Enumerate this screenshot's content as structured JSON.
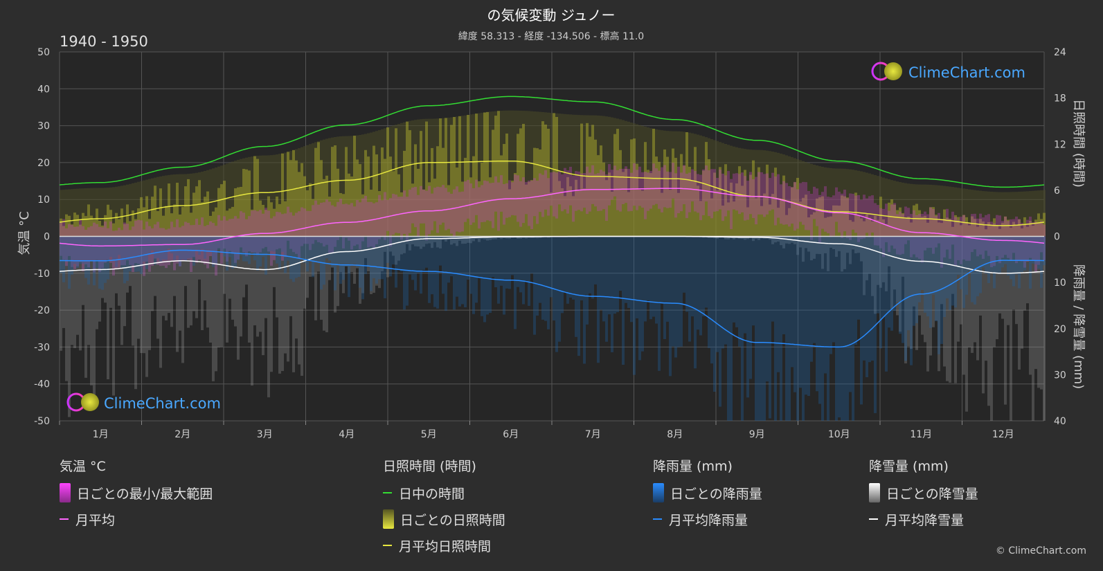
{
  "header": {
    "title": "の気候変動 ジュノー",
    "subtitle": "緯度 58.313 - 経度 -134.506 - 標高 11.0",
    "period": "1940 - 1950"
  },
  "branding": {
    "logo_text": "ClimeChart.com",
    "copyright": "© ClimeChart.com"
  },
  "colors": {
    "daylight": "#33dd33",
    "sunshine": "#e8e840",
    "temp_mean": "#ff66ff",
    "temp_range": "#d040d0",
    "rain": "#2a8cff",
    "snow": "#ffffff",
    "logo": "#4aa8ff"
  },
  "chart_data": {
    "type": "line",
    "months": [
      "1月",
      "2月",
      "3月",
      "4月",
      "5月",
      "6月",
      "7月",
      "8月",
      "9月",
      "10月",
      "11月",
      "12月"
    ],
    "axes": {
      "left": {
        "label": "気温 °C",
        "range": [
          -50,
          50
        ],
        "ticks": [
          50,
          40,
          30,
          20,
          10,
          0,
          -10,
          -20,
          -30,
          -40,
          -50
        ]
      },
      "right_top": {
        "label": "日照時間 (時間)",
        "range": [
          0,
          24
        ],
        "ticks": [
          24,
          18,
          12,
          6,
          0
        ]
      },
      "right_bottom": {
        "label": "降雨量 / 降雪量 (mm)",
        "range": [
          0,
          40
        ],
        "ticks": [
          10,
          20,
          30,
          40
        ]
      }
    },
    "grid": true,
    "series": [
      {
        "name": "日中の時間",
        "unit": "hours",
        "values": [
          7.0,
          9.0,
          11.7,
          14.5,
          17.0,
          18.2,
          17.5,
          15.2,
          12.5,
          9.8,
          7.5,
          6.4
        ]
      },
      {
        "name": "月平均日照時間",
        "unit": "hours",
        "values": [
          2.3,
          4.0,
          5.7,
          7.3,
          9.6,
          9.8,
          7.8,
          7.5,
          5.2,
          3.2,
          2.3,
          1.4
        ]
      },
      {
        "name": "月平均",
        "unit": "°C",
        "values": [
          -2.6,
          -2.2,
          0.8,
          3.8,
          6.9,
          10.2,
          12.7,
          13.0,
          10.8,
          6.4,
          1.0,
          -1.1
        ]
      },
      {
        "name": "月平均降雨量",
        "unit": "mm",
        "values": [
          5.3,
          3.0,
          3.9,
          6.2,
          7.6,
          9.5,
          13.0,
          14.5,
          23.0,
          24.0,
          12.5,
          5.2
        ]
      },
      {
        "name": "月平均降雪量",
        "unit": "mm",
        "values": [
          7.2,
          5.3,
          7.2,
          3.3,
          0.5,
          0.1,
          0.0,
          0.0,
          0.2,
          1.6,
          5.4,
          8.0
        ]
      }
    ]
  },
  "legend": {
    "temperature": {
      "title": "気温 °C",
      "items": [
        "日ごとの最小/最大範囲",
        "月平均"
      ]
    },
    "sunshine": {
      "title": "日照時間 (時間)",
      "items": [
        "日中の時間",
        "日ごとの日照時間",
        "月平均日照時間"
      ]
    },
    "rain": {
      "title": "降雨量 (mm)",
      "items": [
        "日ごとの降雨量",
        "月平均降雨量"
      ]
    },
    "snow": {
      "title": "降雪量 (mm)",
      "items": [
        "日ごとの降雪量",
        "月平均降雪量"
      ]
    }
  }
}
